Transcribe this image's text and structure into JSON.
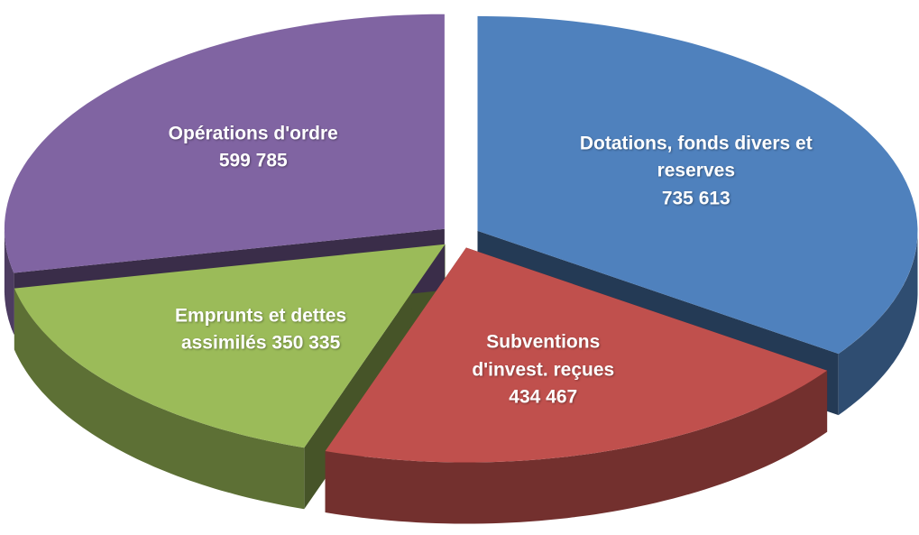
{
  "chart_data": {
    "type": "pie",
    "categories": [
      "Dotations, fonds divers et reserves",
      "Subventions d'invest. reçues",
      "Emprunts et dettes assimilés",
      "Opérations d'ordre"
    ],
    "values": [
      735613,
      434467,
      350335,
      599785
    ],
    "value_labels": [
      "735 613",
      "434 467",
      "350 335",
      "599 785"
    ],
    "colors": [
      "#4f81bd",
      "#c0504d",
      "#9bbb59",
      "#8064a2"
    ]
  }
}
